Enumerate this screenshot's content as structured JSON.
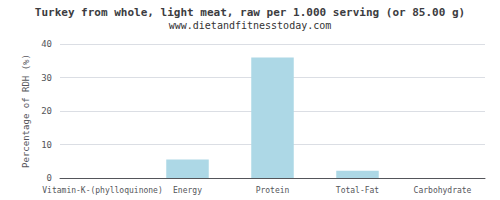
{
  "chart_data": {
    "type": "bar",
    "title": "Turkey from whole, light meat, raw per 1.000 serving (or 85.00 g)",
    "subtitle": "www.dietandfitnesstoday.com",
    "categories": [
      "Vitamin-K-(phylloquinone)",
      "Energy",
      "Protein",
      "Total-Fat",
      "Carbohydrate"
    ],
    "values": [
      0,
      5.5,
      36,
      2.2,
      0
    ],
    "color": "#add8e6",
    "ylabel": "Percentage of RDH (%)",
    "ylim": [
      0,
      40
    ],
    "yticks": [
      0,
      10,
      20,
      30,
      40
    ],
    "grid": true
  }
}
